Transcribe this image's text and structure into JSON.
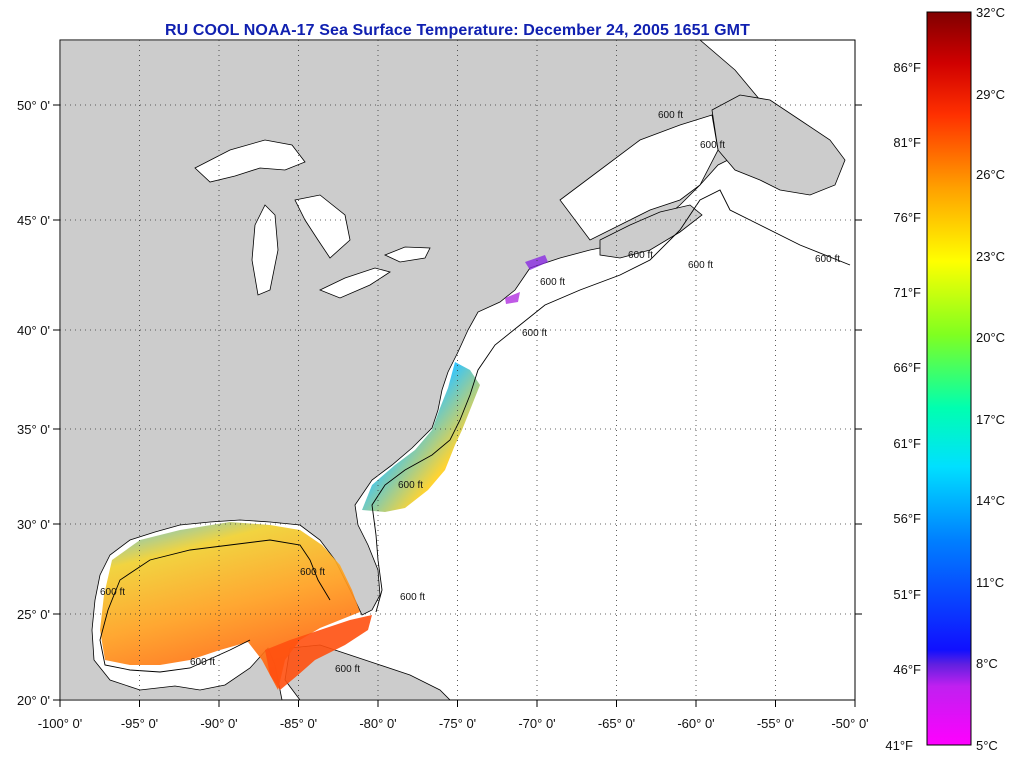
{
  "title": "RU COOL  NOAA-17  Sea Surface Temperature:  December 24, 2005 1651 GMT",
  "map": {
    "lon_range": [
      -100,
      -50
    ],
    "lat_range": [
      20,
      52.5
    ],
    "lon_labels": [
      "-100° 0'",
      "-95° 0'",
      "-90° 0'",
      "-85° 0'",
      "-80° 0'",
      "-75° 0'",
      "-70° 0'",
      "-65° 0'",
      "-60° 0'",
      "-55° 0'",
      "-50° 0'"
    ],
    "lat_labels": [
      "20° 0'",
      "25° 0'",
      "30° 0'",
      "35° 0'",
      "40° 0'",
      "45° 0'",
      "50° 0'"
    ],
    "grid": "dotted",
    "land_color": "#cccccc",
    "water_color": "#ffffff",
    "contour_labels": [
      "600 ft",
      "600 ft",
      "600 ft",
      "600 ft",
      "600 ft",
      "600 ft",
      "600 ft",
      "600 ft",
      "600 ft",
      "600 ft",
      "600 ft",
      "600 ft",
      "600 ft"
    ]
  },
  "colorbar": {
    "placement": "right",
    "celsius_labels": [
      "32°C",
      "29°C",
      "26°C",
      "23°C",
      "20°C",
      "17°C",
      "14°C",
      "11°C",
      "8°C",
      "5°C"
    ],
    "fahrenheit_labels": [
      "86°F",
      "81°F",
      "76°F",
      "71°F",
      "66°F",
      "61°F",
      "56°F",
      "51°F",
      "46°F",
      "41°F"
    ],
    "colors": [
      "#ff00ff",
      "#8000e0",
      "#1010ff",
      "#00a0ff",
      "#00ffff",
      "#00ff80",
      "#a0ff00",
      "#ffff00",
      "#ffa000",
      "#ff4000",
      "#e00000",
      "#800000"
    ]
  }
}
